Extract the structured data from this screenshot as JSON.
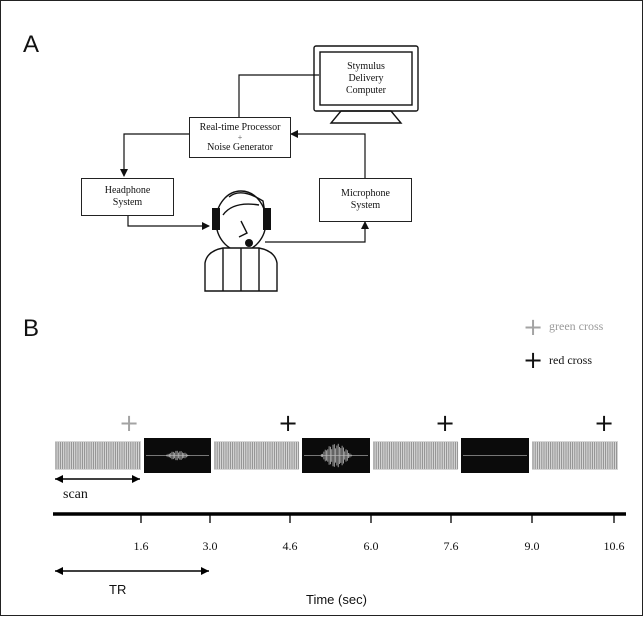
{
  "panels": {
    "a_label": "A",
    "b_label": "B"
  },
  "setup": {
    "computer_lines": [
      "Stymulus",
      "Delivery",
      "Computer"
    ],
    "processor_line1": "Real-time Processor",
    "processor_plus": "+",
    "processor_line2": "Noise Generator",
    "headphone_lines": [
      "Headphone",
      "System"
    ],
    "microphone_lines": [
      "Microphone",
      "System"
    ]
  },
  "legend": {
    "green_label": "green cross",
    "red_label": "red cross",
    "green_color": "#a3a3a3",
    "red_color": "#111111"
  },
  "timeline": {
    "segments": [
      "scan",
      "stimulus-1",
      "scan",
      "stimulus-2",
      "scan",
      "silent",
      "scan"
    ],
    "crosses": [
      "green",
      "red",
      "red",
      "red"
    ],
    "tick_labels": [
      "1.6",
      "3.0",
      "4.6",
      "6.0",
      "7.6",
      "9.0",
      "10.6"
    ],
    "scan_label": "scan",
    "tr_label": "TR",
    "xlabel": "Time (sec)"
  }
}
